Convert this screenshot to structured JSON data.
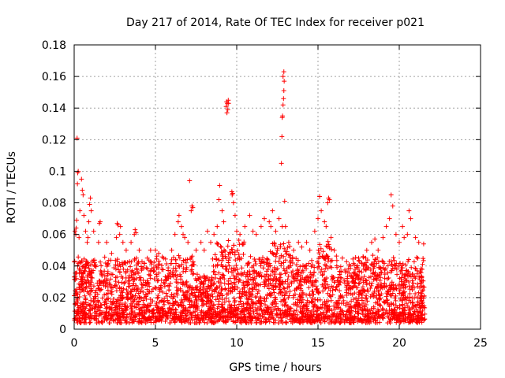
{
  "chart_data": {
    "type": "scatter",
    "title": "Day 217 of 2014, Rate Of TEC Index for receiver p021",
    "xlabel": "GPS time / hours",
    "ylabel": "ROTI / TECUs",
    "xlim": [
      0,
      25
    ],
    "ylim": [
      0,
      0.18
    ],
    "xticks": [
      0,
      5,
      10,
      15,
      20,
      25
    ],
    "yticks": [
      0,
      0.02,
      0.04,
      0.06,
      0.08,
      0.1,
      0.12,
      0.14,
      0.16,
      0.18
    ],
    "ytick_labels": [
      "0",
      "0.02",
      "0.04",
      "0.06",
      "0.08",
      "0.1",
      "0.12",
      "0.14",
      "0.16",
      "0.18"
    ],
    "grid": true,
    "marker": "+",
    "series": [
      {
        "name": "ROTI",
        "color": "#ff0000",
        "data_range_hours": [
          0,
          21.6
        ],
        "typical_range": [
          0.005,
          0.045
        ],
        "points": [
          [
            0.05,
            0.062
          ],
          [
            0.1,
            0.06
          ],
          [
            0.12,
            0.064
          ],
          [
            0.2,
            0.092
          ],
          [
            0.22,
            0.099
          ],
          [
            0.25,
            0.1
          ],
          [
            0.18,
            0.121
          ],
          [
            0.15,
            0.069
          ],
          [
            0.3,
            0.058
          ],
          [
            0.35,
            0.075
          ],
          [
            0.45,
            0.095
          ],
          [
            0.5,
            0.088
          ],
          [
            0.55,
            0.085
          ],
          [
            0.6,
            0.072
          ],
          [
            0.7,
            0.062
          ],
          [
            0.8,
            0.055
          ],
          [
            0.85,
            0.058
          ],
          [
            0.9,
            0.068
          ],
          [
            0.95,
            0.079
          ],
          [
            1.0,
            0.083
          ],
          [
            1.05,
            0.075
          ],
          [
            1.2,
            0.062
          ],
          [
            1.5,
            0.055
          ],
          [
            1.55,
            0.067
          ],
          [
            1.6,
            0.068
          ],
          [
            2.0,
            0.055
          ],
          [
            2.3,
            0.048
          ],
          [
            2.6,
            0.058
          ],
          [
            2.65,
            0.067
          ],
          [
            2.7,
            0.066
          ],
          [
            2.8,
            0.06
          ],
          [
            2.85,
            0.065
          ],
          [
            3.0,
            0.055
          ],
          [
            3.2,
            0.05
          ],
          [
            3.5,
            0.055
          ],
          [
            3.7,
            0.06
          ],
          [
            3.75,
            0.063
          ],
          [
            3.8,
            0.061
          ],
          [
            4.0,
            0.05
          ],
          [
            4.5,
            0.045
          ],
          [
            4.7,
            0.05
          ],
          [
            5.0,
            0.05
          ],
          [
            5.2,
            0.048
          ],
          [
            5.5,
            0.045
          ],
          [
            6.0,
            0.05
          ],
          [
            6.2,
            0.06
          ],
          [
            6.4,
            0.068
          ],
          [
            6.45,
            0.072
          ],
          [
            6.6,
            0.065
          ],
          [
            6.7,
            0.06
          ],
          [
            6.8,
            0.058
          ],
          [
            7.0,
            0.055
          ],
          [
            7.1,
            0.094
          ],
          [
            7.2,
            0.075
          ],
          [
            7.25,
            0.078
          ],
          [
            7.3,
            0.077
          ],
          [
            7.5,
            0.05
          ],
          [
            7.8,
            0.055
          ],
          [
            8.0,
            0.05
          ],
          [
            8.2,
            0.062
          ],
          [
            8.4,
            0.055
          ],
          [
            8.6,
            0.06
          ],
          [
            8.8,
            0.065
          ],
          [
            8.9,
            0.082
          ],
          [
            8.95,
            0.091
          ],
          [
            9.1,
            0.075
          ],
          [
            9.2,
            0.068
          ],
          [
            9.35,
            0.141
          ],
          [
            9.38,
            0.144
          ],
          [
            9.4,
            0.137
          ],
          [
            9.42,
            0.143
          ],
          [
            9.45,
            0.139
          ],
          [
            9.48,
            0.145
          ],
          [
            9.5,
            0.143
          ],
          [
            9.7,
            0.087
          ],
          [
            9.72,
            0.085
          ],
          [
            9.75,
            0.086
          ],
          [
            9.8,
            0.08
          ],
          [
            9.9,
            0.072
          ],
          [
            10.0,
            0.062
          ],
          [
            10.2,
            0.06
          ],
          [
            10.5,
            0.065
          ],
          [
            10.8,
            0.072
          ],
          [
            11.0,
            0.062
          ],
          [
            11.2,
            0.06
          ],
          [
            11.5,
            0.065
          ],
          [
            11.7,
            0.07
          ],
          [
            12.0,
            0.068
          ],
          [
            12.1,
            0.065
          ],
          [
            12.2,
            0.075
          ],
          [
            12.4,
            0.062
          ],
          [
            12.6,
            0.07
          ],
          [
            12.8,
            0.065
          ],
          [
            12.75,
            0.105
          ],
          [
            12.78,
            0.122
          ],
          [
            12.8,
            0.134
          ],
          [
            12.82,
            0.135
          ],
          [
            12.85,
            0.142
          ],
          [
            12.88,
            0.146
          ],
          [
            12.9,
            0.151
          ],
          [
            12.92,
            0.157
          ],
          [
            12.85,
            0.16
          ],
          [
            12.9,
            0.163
          ],
          [
            12.95,
            0.081
          ],
          [
            13.0,
            0.065
          ],
          [
            13.2,
            0.055
          ],
          [
            13.5,
            0.05
          ],
          [
            13.8,
            0.055
          ],
          [
            14.0,
            0.052
          ],
          [
            14.3,
            0.055
          ],
          [
            14.5,
            0.05
          ],
          [
            14.8,
            0.062
          ],
          [
            15.0,
            0.07
          ],
          [
            15.1,
            0.084
          ],
          [
            15.2,
            0.075
          ],
          [
            15.4,
            0.068
          ],
          [
            15.5,
            0.065
          ],
          [
            15.6,
            0.08
          ],
          [
            15.65,
            0.083
          ],
          [
            15.7,
            0.082
          ],
          [
            15.8,
            0.058
          ],
          [
            16.0,
            0.05
          ],
          [
            16.5,
            0.045
          ],
          [
            17.0,
            0.04
          ],
          [
            17.5,
            0.045
          ],
          [
            18.0,
            0.05
          ],
          [
            18.3,
            0.055
          ],
          [
            18.5,
            0.057
          ],
          [
            18.7,
            0.05
          ],
          [
            19.0,
            0.058
          ],
          [
            19.2,
            0.065
          ],
          [
            19.4,
            0.07
          ],
          [
            19.5,
            0.085
          ],
          [
            19.6,
            0.078
          ],
          [
            19.8,
            0.06
          ],
          [
            20.0,
            0.055
          ],
          [
            20.2,
            0.065
          ],
          [
            20.3,
            0.058
          ],
          [
            20.5,
            0.06
          ],
          [
            20.6,
            0.075
          ],
          [
            20.7,
            0.07
          ],
          [
            21.0,
            0.058
          ],
          [
            21.2,
            0.055
          ],
          [
            21.5,
            0.054
          ]
        ]
      }
    ]
  }
}
